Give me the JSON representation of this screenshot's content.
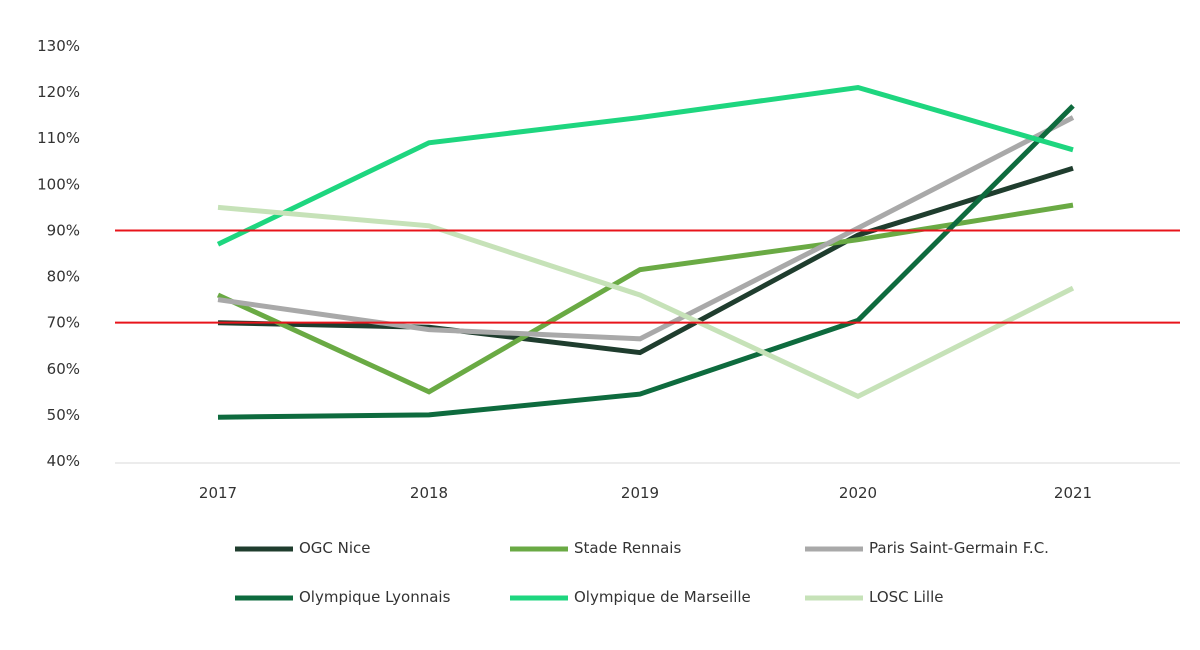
{
  "chart_data": {
    "type": "line",
    "title": "",
    "xlabel": "",
    "ylabel": "",
    "x": [
      "2017",
      "2018",
      "2019",
      "2020",
      "2021"
    ],
    "ylim": [
      40,
      130
    ],
    "y_ticks": [
      {
        "value": 40,
        "label": "40%"
      },
      {
        "value": 50,
        "label": "50%"
      },
      {
        "value": 60,
        "label": "60%"
      },
      {
        "value": 70,
        "label": "70%"
      },
      {
        "value": 80,
        "label": "80%"
      },
      {
        "value": 90,
        "label": "90%"
      },
      {
        "value": 100,
        "label": "100%"
      },
      {
        "value": 110,
        "label": "110%"
      },
      {
        "value": 120,
        "label": "120%"
      },
      {
        "value": 130,
        "label": "130%"
      }
    ],
    "grid": false,
    "legend_position": "bottom",
    "reference_lines": [
      {
        "y": 70,
        "color": "#e8141b"
      },
      {
        "y": 90,
        "color": "#e8141b"
      }
    ],
    "series": [
      {
        "name": "OGC Nice",
        "color": "#1f3d2e",
        "values": [
          70,
          69,
          63.5,
          89,
          103.5
        ]
      },
      {
        "name": "Stade Rennais",
        "color": "#6aaa44",
        "values": [
          76,
          55,
          81.5,
          88,
          95.5
        ]
      },
      {
        "name": "Paris Saint-Germain F.C.",
        "color": "#a9a9a9",
        "values": [
          75,
          68.5,
          66.5,
          90.5,
          114.5
        ]
      },
      {
        "name": "Olympique Lyonnais",
        "color": "#0e6b3e",
        "values": [
          49.5,
          50,
          54.5,
          70.5,
          117
        ]
      },
      {
        "name": "Olympique de Marseille",
        "color": "#1ed67f",
        "values": [
          87,
          109,
          114.5,
          121,
          107.5
        ]
      },
      {
        "name": "LOSC Lille",
        "color": "#c6e2b8",
        "values": [
          95,
          91,
          76,
          54,
          77.5
        ]
      }
    ]
  }
}
